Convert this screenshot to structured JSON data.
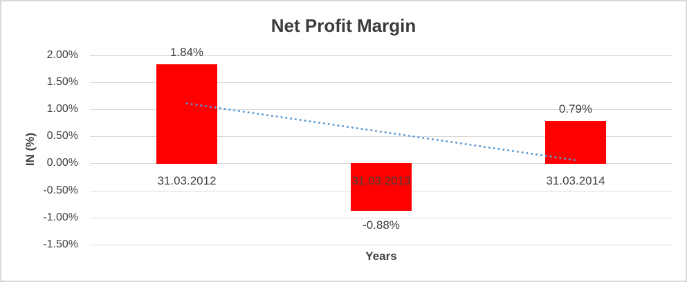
{
  "window": {
    "background": "#FFFFFF",
    "border_color": "#D8D8D8"
  },
  "chart_data": {
    "type": "bar",
    "title": "Net Profit Margin",
    "xlabel": "Years",
    "ylabel": "IN (%)",
    "categories": [
      "31.03.2012",
      "31.03.2013",
      "31.03.2014"
    ],
    "values": [
      1.84,
      -0.88,
      0.79
    ],
    "data_labels": [
      "1.84%",
      "-0.88%",
      "0.79%"
    ],
    "y_ticks": [
      {
        "label": "2.00%",
        "value": 2.0
      },
      {
        "label": "1.50%",
        "value": 1.5
      },
      {
        "label": "1.00%",
        "value": 1.0
      },
      {
        "label": "0.50%",
        "value": 0.5
      },
      {
        "label": "0.00%",
        "value": 0.0
      },
      {
        "label": "-0.50%",
        "value": -0.5
      },
      {
        "label": "-1.00%",
        "value": -1.0
      },
      {
        "label": "-1.50%",
        "value": -1.5
      }
    ],
    "ylim": [
      -1.5,
      2.0
    ],
    "grid": true,
    "legend": "none",
    "colors": {
      "bar": "#FF0000",
      "trendline": "#5B9BD5",
      "gridline": "#D9D9D9",
      "text": "#404040",
      "title_text": "#3B3B3B"
    },
    "trendline": {
      "type": "linear",
      "line_style": "dotted",
      "start_value": 1.11,
      "end_value": 0.06
    }
  }
}
